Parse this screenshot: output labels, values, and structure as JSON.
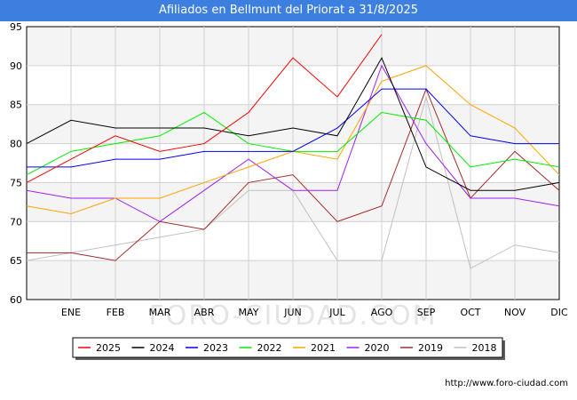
{
  "chart_data": {
    "type": "line",
    "title": "Afiliados en Bellmunt del Priorat a 31/8/2025",
    "categories": [
      "",
      "ENE",
      "FEB",
      "MAR",
      "ABR",
      "MAY",
      "JUN",
      "JUL",
      "AGO",
      "SEP",
      "OCT",
      "NOV",
      "DIC"
    ],
    "ylim": [
      60,
      95
    ],
    "yticks": [
      60,
      65,
      70,
      75,
      80,
      85,
      90,
      95
    ],
    "grid": true,
    "legend_position": "bottom",
    "series": [
      {
        "name": "2025",
        "color": "#ff0000",
        "values": [
          75,
          78,
          81,
          79,
          80,
          84,
          91,
          86,
          94,
          null,
          null,
          null,
          null
        ]
      },
      {
        "name": "2024",
        "color": "#000000",
        "values": [
          80,
          83,
          82,
          82,
          82,
          81,
          82,
          81,
          91,
          77,
          74,
          74,
          75
        ]
      },
      {
        "name": "2023",
        "color": "#0000ff",
        "values": [
          77,
          77,
          78,
          78,
          79,
          79,
          79,
          82,
          87,
          87,
          81,
          80,
          80
        ]
      },
      {
        "name": "2022",
        "color": "#00ee00",
        "values": [
          76,
          79,
          80,
          81,
          84,
          80,
          79,
          79,
          84,
          83,
          77,
          78,
          77
        ]
      },
      {
        "name": "2021",
        "color": "#ffa500",
        "values": [
          72,
          71,
          73,
          73,
          75,
          77,
          79,
          78,
          88,
          90,
          85,
          82,
          76
        ]
      },
      {
        "name": "2020",
        "color": "#a020f0",
        "values": [
          74,
          73,
          73,
          70,
          74,
          78,
          74,
          74,
          90,
          80,
          73,
          73,
          72
        ]
      },
      {
        "name": "2019",
        "color": "#a52a2a",
        "values": [
          66,
          66,
          65,
          70,
          69,
          75,
          76,
          70,
          72,
          87,
          73,
          79,
          74
        ]
      },
      {
        "name": "2018",
        "color": "#c0c0c0",
        "values": [
          65,
          66,
          67,
          68,
          69,
          74,
          74,
          65,
          65,
          86,
          64,
          67,
          66
        ]
      }
    ]
  },
  "watermark": "FORO-CIUDAD.COM",
  "source_url": "http://www.foro-ciudad.com"
}
